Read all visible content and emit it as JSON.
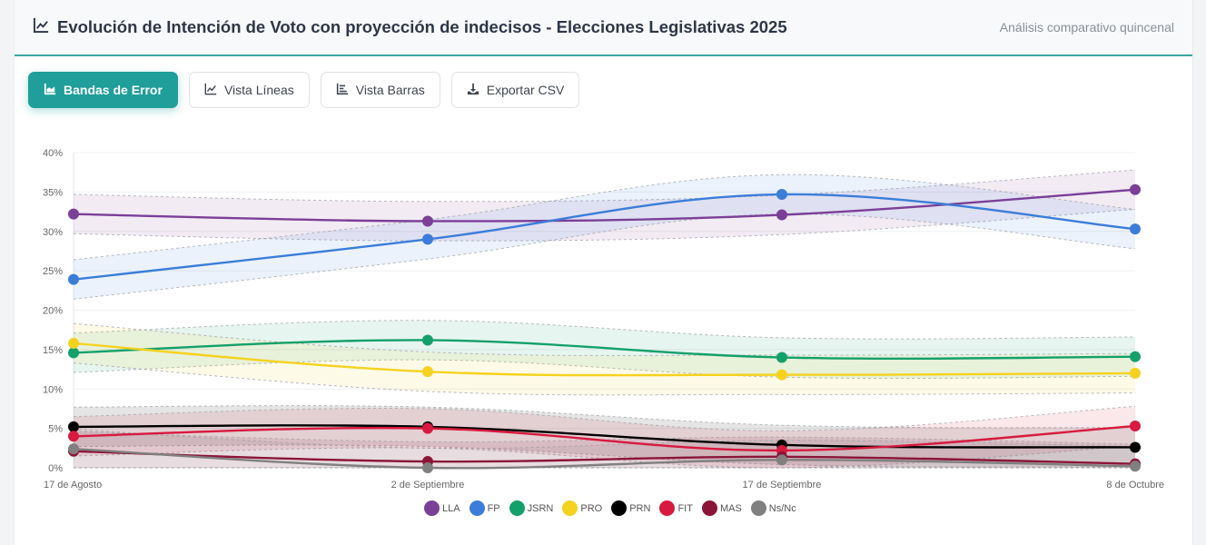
{
  "header": {
    "title": "Evolución de Intención de Voto con proyección de indecisos - Elecciones Legislativas 2025",
    "subtitle": "Análisis comparativo quincenal"
  },
  "toolbar": {
    "buttons": [
      {
        "label": "Bandas de Error",
        "icon": "area-chart-icon",
        "active": true
      },
      {
        "label": "Vista Líneas",
        "icon": "line-chart-icon",
        "active": false
      },
      {
        "label": "Vista Barras",
        "icon": "bar-chart-icon",
        "active": false
      },
      {
        "label": "Exportar CSV",
        "icon": "download-icon",
        "active": false
      }
    ]
  },
  "chart_data": {
    "type": "line",
    "title": "Evolución de Intención de Voto con proyección de indecisos - Elecciones Legislativas 2025",
    "xlabel": "",
    "ylabel": "",
    "x": [
      "17 de Agosto",
      "2 de Septiembre",
      "17 de Septiembre",
      "8 de Octubre"
    ],
    "ylim": [
      0,
      40
    ],
    "yticks": [
      0,
      5,
      10,
      15,
      20,
      25,
      30,
      35,
      40
    ],
    "ytick_labels": [
      "0%",
      "5%",
      "10%",
      "15%",
      "20%",
      "25%",
      "30%",
      "35%",
      "40%"
    ],
    "grid": true,
    "legend": "bottom",
    "error_band": 2.5,
    "series": [
      {
        "name": "LLA",
        "color": "#7b3f98",
        "values": [
          32.2,
          31.3,
          32.1,
          35.3
        ]
      },
      {
        "name": "FP",
        "color": "#3b7dd8",
        "values": [
          23.9,
          29.0,
          34.7,
          30.3
        ]
      },
      {
        "name": "JSRN",
        "color": "#14a06a",
        "values": [
          14.6,
          16.2,
          14.0,
          14.1
        ]
      },
      {
        "name": "PRO",
        "color": "#f5d21f",
        "values": [
          15.8,
          12.2,
          11.8,
          12.0
        ]
      },
      {
        "name": "PRN",
        "color": "#000000",
        "values": [
          5.2,
          5.2,
          2.9,
          2.6
        ]
      },
      {
        "name": "FIT",
        "color": "#d71a3e",
        "values": [
          4.0,
          5.0,
          2.2,
          5.3
        ]
      },
      {
        "name": "MAS",
        "color": "#8b1538",
        "values": [
          2.1,
          0.8,
          1.4,
          0.5
        ]
      },
      {
        "name": "Ns/Nc",
        "color": "#808080",
        "values": [
          2.4,
          0.0,
          1.0,
          0.2
        ]
      }
    ]
  }
}
